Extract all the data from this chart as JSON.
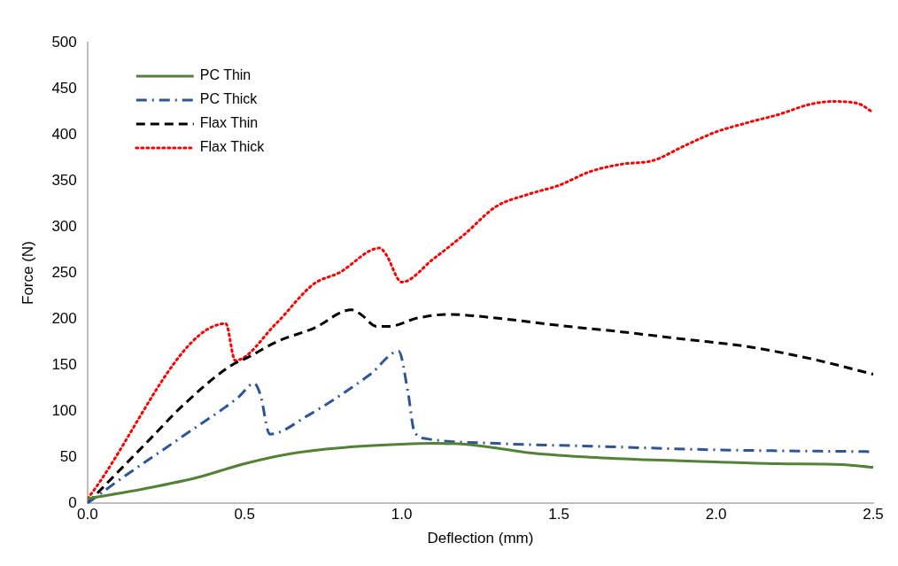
{
  "chart_data": {
    "type": "line",
    "xlabel": "Deflection (mm)",
    "ylabel": "Force (N)",
    "xlim": [
      0,
      2.5
    ],
    "xticks": [
      {
        "value": 0,
        "label": "0.0"
      },
      {
        "value": 0.5,
        "label": "0.5"
      },
      {
        "value": 1,
        "label": "1.0"
      },
      {
        "value": 1.5,
        "label": "1.5"
      },
      {
        "value": 2,
        "label": "2.0"
      },
      {
        "value": 2.5,
        "label": "2.5"
      }
    ],
    "ylim": [
      0,
      500
    ],
    "yticks": [
      0,
      50,
      100,
      150,
      200,
      250,
      300,
      350,
      400,
      450,
      500
    ],
    "grid": false,
    "legend": "top left",
    "marker": "none",
    "series": [
      {
        "name": "PC Thin",
        "color": "#548235",
        "line_style": "solid",
        "x": [
          0,
          0.2,
          0.35,
          0.5,
          0.65,
          0.8,
          1.0,
          1.1,
          1.2,
          1.3,
          1.4,
          1.6,
          1.8,
          2.0,
          2.2,
          2.4,
          2.5
        ],
        "values": [
          5,
          17,
          28,
          43,
          54,
          60,
          64,
          65,
          64,
          60,
          55,
          50,
          47,
          45,
          43,
          42,
          39
        ]
      },
      {
        "name": "PC Thick",
        "color": "#2f5597",
        "line_style": "dashdot",
        "x": [
          0,
          0.1,
          0.3,
          0.48,
          0.53,
          0.55,
          0.58,
          0.7,
          0.9,
          0.99,
          1.02,
          1.04,
          1.08,
          1.3,
          1.6,
          2.0,
          2.5
        ],
        "values": [
          0,
          25,
          72,
          115,
          130,
          118,
          75,
          95,
          140,
          165,
          120,
          78,
          70,
          65,
          62,
          58,
          56
        ]
      },
      {
        "name": "Flax Thin",
        "color": "#000000",
        "line_style": "dashed",
        "x": [
          0,
          0.2,
          0.3,
          0.45,
          0.52,
          0.6,
          0.72,
          0.84,
          0.87,
          0.92,
          0.96,
          1.05,
          1.15,
          1.3,
          1.5,
          1.7,
          1.9,
          2.1,
          2.3,
          2.5
        ],
        "values": [
          0,
          70,
          105,
          148,
          160,
          175,
          190,
          210,
          205,
          192,
          192,
          201,
          205,
          201,
          193,
          186,
          178,
          170,
          157,
          140
        ]
      },
      {
        "name": "Flax Thick",
        "color": "#ff0000",
        "line_style": "dotted",
        "x": [
          0,
          0.44,
          0.47,
          0.6,
          0.72,
          0.8,
          0.93,
          0.95,
          1.0,
          1.1,
          1.2,
          1.3,
          1.4,
          1.5,
          1.6,
          1.7,
          1.8,
          1.9,
          2.0,
          2.1,
          2.2,
          2.3,
          2.37,
          2.45,
          2.5
        ],
        "values": [
          5,
          195,
          155,
          195,
          238,
          250,
          277,
          270,
          240,
          265,
          292,
          322,
          335,
          345,
          360,
          368,
          372,
          388,
          403,
          413,
          422,
          433,
          436,
          434,
          424
        ]
      }
    ]
  }
}
